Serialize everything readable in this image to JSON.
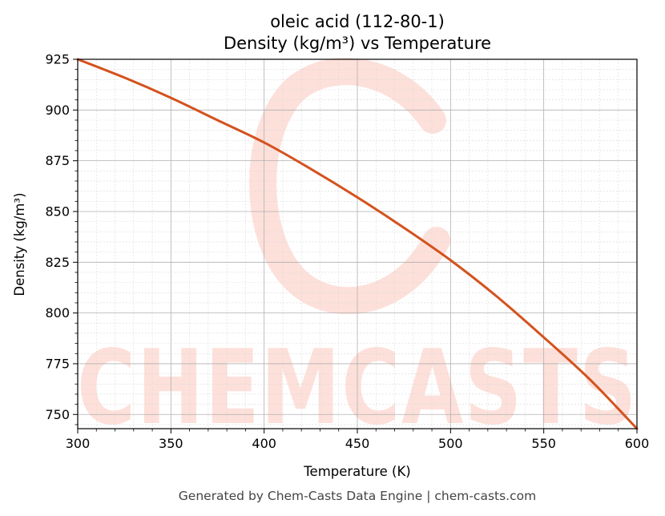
{
  "chart_data": {
    "type": "line",
    "title": "oleic acid (112-80-1)",
    "subtitle": "Density (kg/m³) vs Temperature",
    "xlabel": "Temperature (K)",
    "ylabel": "Density (kg/m³)",
    "xlim": [
      300,
      600
    ],
    "ylim": [
      743,
      925
    ],
    "xticks": [
      300,
      350,
      400,
      450,
      500,
      550,
      600
    ],
    "yticks": [
      750,
      775,
      800,
      825,
      850,
      875,
      900,
      925
    ],
    "grid": true,
    "series": [
      {
        "color": "#d4521e",
        "x": [
          300,
          325,
          350,
          375,
          400,
          425,
          450,
          475,
          500,
          525,
          550,
          575,
          600
        ],
        "y": [
          925,
          916,
          906,
          895,
          884,
          871,
          857,
          842,
          826,
          808,
          788,
          767,
          743
        ]
      }
    ]
  },
  "watermark": {
    "text": "CHEMCASTS",
    "color": "#fde0da"
  },
  "footer": {
    "text": "Generated by Chem-Casts Data Engine | chem-casts.com"
  }
}
